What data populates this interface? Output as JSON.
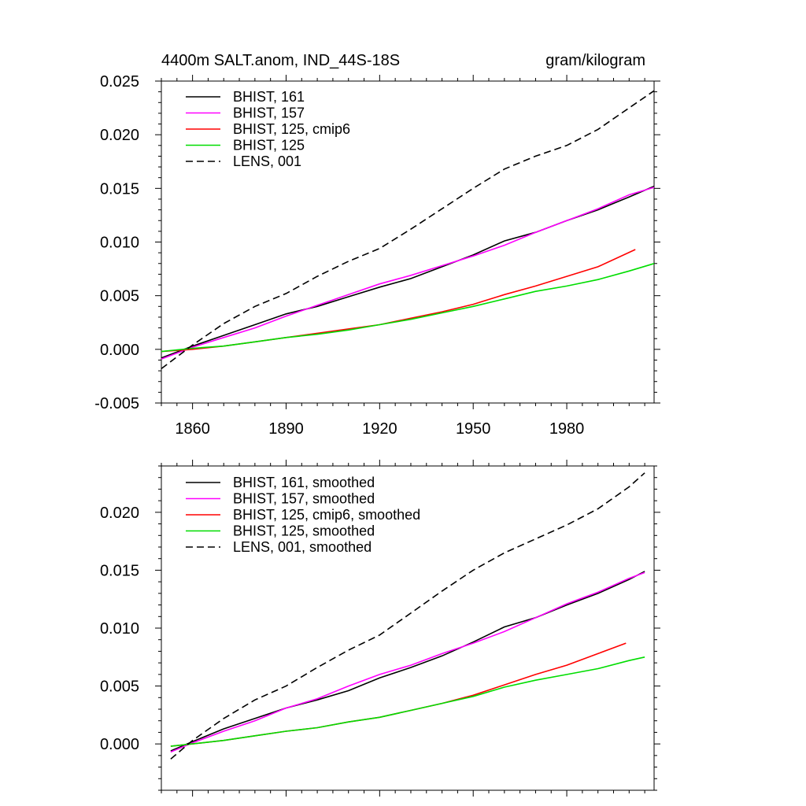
{
  "chart_data": [
    {
      "type": "line",
      "title": "4400m SALT.anom, IND_44S-18S",
      "units": "gram/kilogram",
      "xlim": [
        1850,
        2008
      ],
      "ylim": [
        -0.005,
        0.025
      ],
      "xticks": [
        1860,
        1890,
        1920,
        1950,
        1980
      ],
      "xtick_labels": [
        "1860",
        "1890",
        "1920",
        "1950",
        "1980"
      ],
      "yticks": [
        -0.005,
        0.0,
        0.005,
        0.01,
        0.015,
        0.02,
        0.025
      ],
      "ytick_labels": [
        "-0.005",
        "0.000",
        "0.005",
        "0.010",
        "0.015",
        "0.020",
        "0.025"
      ],
      "legend_position": "top-left",
      "series": [
        {
          "name": "BHIST, 161",
          "color": "#000000",
          "dash": "solid",
          "x": [
            1850,
            1860,
            1870,
            1880,
            1890,
            1900,
            1910,
            1920,
            1930,
            1940,
            1950,
            1960,
            1970,
            1980,
            1990,
            2000,
            2008
          ],
          "y": [
            -0.0008,
            0.0003,
            0.0013,
            0.0023,
            0.0033,
            0.004,
            0.0049,
            0.0058,
            0.0066,
            0.0077,
            0.0088,
            0.0101,
            0.0109,
            0.012,
            0.013,
            0.0142,
            0.0152
          ]
        },
        {
          "name": "BHIST, 157",
          "color": "#ff00ff",
          "dash": "solid",
          "x": [
            1850,
            1860,
            1870,
            1880,
            1890,
            1900,
            1910,
            1920,
            1930,
            1940,
            1950,
            1960,
            1970,
            1980,
            1990,
            2000,
            2008
          ],
          "y": [
            -0.0009,
            0.0002,
            0.0011,
            0.002,
            0.0031,
            0.0041,
            0.0051,
            0.0061,
            0.0069,
            0.0078,
            0.0087,
            0.0097,
            0.0109,
            0.012,
            0.0131,
            0.0144,
            0.0151
          ]
        },
        {
          "name": "BHIST, 125, cmip6",
          "color": "#ff0000",
          "dash": "solid",
          "x": [
            1850,
            1860,
            1870,
            1880,
            1890,
            1900,
            1910,
            1920,
            1930,
            1940,
            1950,
            1960,
            1970,
            1980,
            1990,
            2002
          ],
          "y": [
            -0.0002,
            0.0,
            0.0003,
            0.0007,
            0.0011,
            0.0015,
            0.0019,
            0.0023,
            0.0029,
            0.0035,
            0.0042,
            0.0051,
            0.0059,
            0.0068,
            0.0077,
            0.0093
          ]
        },
        {
          "name": "BHIST, 125",
          "color": "#00dd00",
          "dash": "solid",
          "x": [
            1850,
            1860,
            1870,
            1880,
            1890,
            1900,
            1910,
            1920,
            1930,
            1940,
            1950,
            1960,
            1970,
            1980,
            1990,
            2000,
            2008
          ],
          "y": [
            -0.0002,
            0.0001,
            0.0003,
            0.0007,
            0.0011,
            0.0014,
            0.0018,
            0.0023,
            0.0028,
            0.0034,
            0.004,
            0.0047,
            0.0054,
            0.0059,
            0.0065,
            0.0073,
            0.008
          ]
        },
        {
          "name": "LENS, 001",
          "color": "#000000",
          "dash": "dashed",
          "x": [
            1850,
            1860,
            1870,
            1880,
            1890,
            1900,
            1910,
            1920,
            1930,
            1940,
            1950,
            1960,
            1970,
            1980,
            1990,
            2000,
            2008
          ],
          "y": [
            -0.0018,
            0.0004,
            0.0024,
            0.004,
            0.0052,
            0.0068,
            0.0082,
            0.0094,
            0.0112,
            0.0131,
            0.015,
            0.0168,
            0.018,
            0.019,
            0.0205,
            0.0225,
            0.0241
          ]
        }
      ]
    },
    {
      "type": "line",
      "title": "",
      "xlim": [
        1850,
        2008
      ],
      "ylim": [
        -0.004,
        0.024
      ],
      "xticks": [
        1860,
        1890,
        1920,
        1950,
        1980
      ],
      "yticks": [
        0.0,
        0.005,
        0.01,
        0.015,
        0.02
      ],
      "ytick_labels": [
        "0.000",
        "0.005",
        "0.010",
        "0.015",
        "0.020"
      ],
      "legend_position": "top-left",
      "series": [
        {
          "name": "BHIST, 161, smoothed",
          "color": "#000000",
          "dash": "solid",
          "x": [
            1853,
            1860,
            1870,
            1880,
            1890,
            1900,
            1910,
            1920,
            1930,
            1940,
            1950,
            1960,
            1970,
            1980,
            1990,
            2000,
            2005
          ],
          "y": [
            -0.0006,
            0.0002,
            0.0013,
            0.0022,
            0.0031,
            0.0038,
            0.0046,
            0.0057,
            0.0066,
            0.0076,
            0.0088,
            0.0101,
            0.0109,
            0.012,
            0.013,
            0.0142,
            0.0149
          ]
        },
        {
          "name": "BHIST, 157, smoothed",
          "color": "#ff00ff",
          "dash": "solid",
          "x": [
            1853,
            1860,
            1870,
            1880,
            1890,
            1900,
            1910,
            1920,
            1930,
            1940,
            1950,
            1960,
            1970,
            1980,
            1990,
            2000,
            2005
          ],
          "y": [
            -0.0007,
            0.0001,
            0.0011,
            0.002,
            0.0031,
            0.0039,
            0.005,
            0.006,
            0.0068,
            0.0078,
            0.0087,
            0.0097,
            0.0109,
            0.0121,
            0.0131,
            0.0143,
            0.0148
          ]
        },
        {
          "name": "BHIST, 125, cmip6, smoothed",
          "color": "#ff0000",
          "dash": "solid",
          "x": [
            1853,
            1860,
            1870,
            1880,
            1890,
            1900,
            1910,
            1920,
            1930,
            1940,
            1950,
            1960,
            1970,
            1980,
            1990,
            1999
          ],
          "y": [
            -0.0002,
            0.0,
            0.0003,
            0.0007,
            0.0011,
            0.0014,
            0.0019,
            0.0023,
            0.0029,
            0.0035,
            0.0042,
            0.0051,
            0.006,
            0.0068,
            0.0078,
            0.0087
          ]
        },
        {
          "name": "BHIST, 125, smoothed",
          "color": "#00dd00",
          "dash": "solid",
          "x": [
            1853,
            1860,
            1870,
            1880,
            1890,
            1900,
            1910,
            1920,
            1930,
            1940,
            1950,
            1960,
            1970,
            1980,
            1990,
            2000,
            2005
          ],
          "y": [
            -0.0002,
            0.0,
            0.0003,
            0.0007,
            0.0011,
            0.0014,
            0.0019,
            0.0023,
            0.0029,
            0.0035,
            0.0041,
            0.0049,
            0.0055,
            0.006,
            0.0065,
            0.0072,
            0.0075
          ]
        },
        {
          "name": "LENS, 001, smoothed",
          "color": "#000000",
          "dash": "dashed",
          "x": [
            1853,
            1860,
            1870,
            1880,
            1890,
            1900,
            1910,
            1920,
            1930,
            1940,
            1950,
            1960,
            1970,
            1980,
            1990,
            2000,
            2005
          ],
          "y": [
            -0.0013,
            0.0003,
            0.0022,
            0.0038,
            0.005,
            0.0066,
            0.0081,
            0.0094,
            0.0113,
            0.0132,
            0.015,
            0.0165,
            0.0177,
            0.0189,
            0.0203,
            0.0222,
            0.0234
          ]
        }
      ]
    }
  ]
}
